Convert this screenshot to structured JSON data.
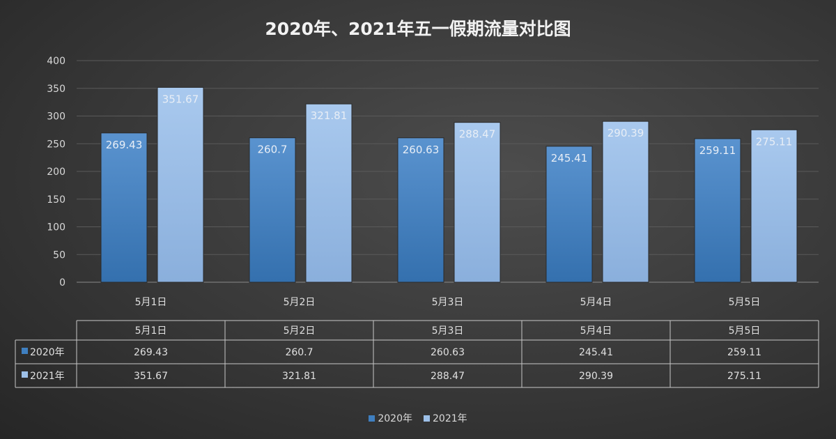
{
  "chart_data": {
    "type": "bar",
    "title": "2020年、2021年五一假期流量对比图",
    "categories": [
      "5月1日",
      "5月2日",
      "5月3日",
      "5月4日",
      "5月5日"
    ],
    "series": [
      {
        "name": "2020年",
        "values": [
          269.43,
          260.7,
          260.63,
          245.41,
          259.11
        ],
        "color": "#3f7fc0"
      },
      {
        "name": "2021年",
        "values": [
          351.67,
          321.81,
          288.47,
          290.39,
          275.11
        ],
        "color": "#9dc0e8"
      }
    ],
    "yticks": [
      0,
      50,
      100,
      150,
      200,
      250,
      300,
      350,
      400
    ],
    "ylim": [
      0,
      400
    ],
    "grid": true,
    "data_table": true,
    "legend": "bottom"
  }
}
